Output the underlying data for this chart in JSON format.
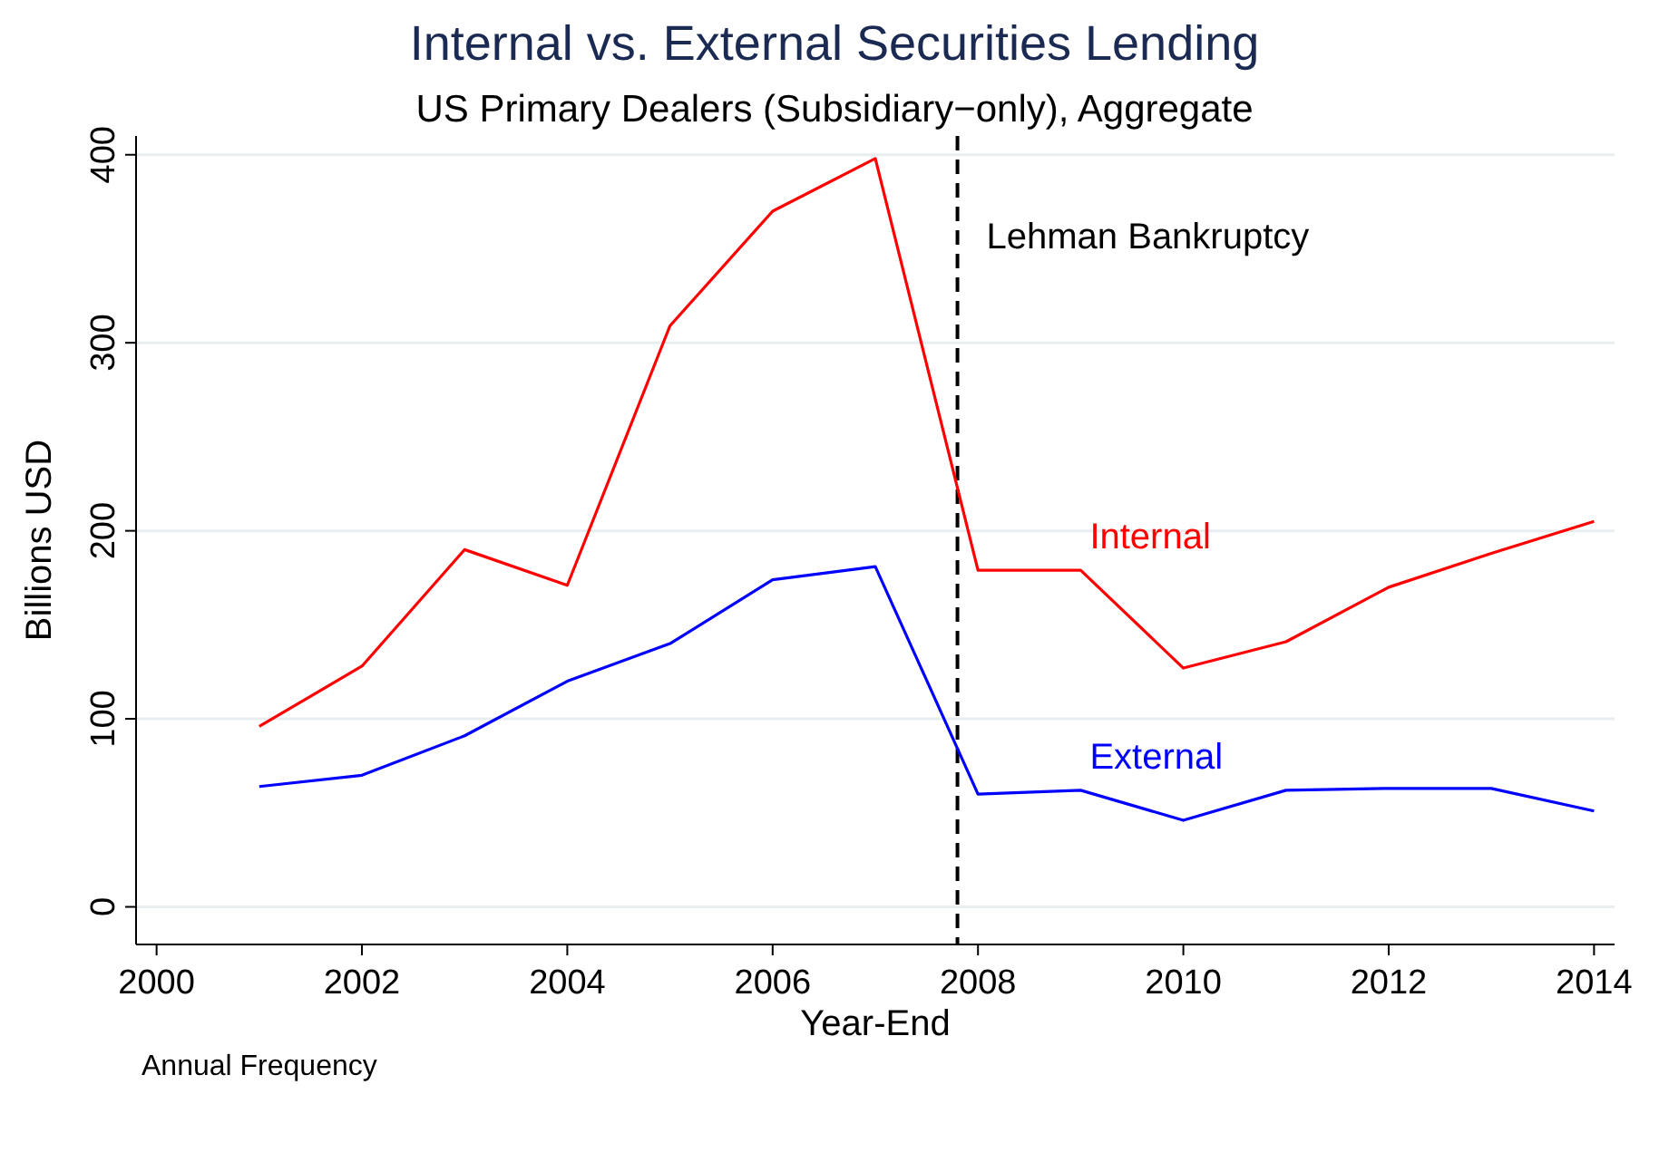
{
  "chart_data": {
    "type": "line",
    "title": "Internal vs. External Securities Lending",
    "subtitle": "US Primary Dealers (Subsidiary−only), Aggregate",
    "xlabel": "Year-End",
    "ylabel": "Billions USD",
    "x": [
      2001,
      2002,
      2003,
      2004,
      2005,
      2006,
      2007,
      2008,
      2009,
      2010,
      2011,
      2012,
      2013,
      2014
    ],
    "series": [
      {
        "name": "Internal",
        "color": "#ff0000",
        "values": [
          96,
          128,
          190,
          171,
          309,
          370,
          398,
          179,
          179,
          127,
          141,
          170,
          188,
          205
        ]
      },
      {
        "name": "External",
        "color": "#0000ff",
        "values": [
          64,
          70,
          91,
          120,
          140,
          174,
          181,
          60,
          62,
          46,
          62,
          63,
          63,
          51
        ]
      }
    ],
    "xlim": [
      1999.8,
      2014.2
    ],
    "xticks": [
      2000,
      2002,
      2004,
      2006,
      2008,
      2010,
      2012,
      2014
    ],
    "ylim": [
      -20,
      410
    ],
    "yticks": [
      0,
      100,
      200,
      300,
      400
    ],
    "grid": "y",
    "legend": false,
    "ref_lines": [
      {
        "axis": "x",
        "value": 2007.8,
        "label": "Lehman Bankruptcy",
        "color": "#000000",
        "line_style": "dashed"
      }
    ],
    "annotations": [
      "Annual Frequency"
    ]
  }
}
